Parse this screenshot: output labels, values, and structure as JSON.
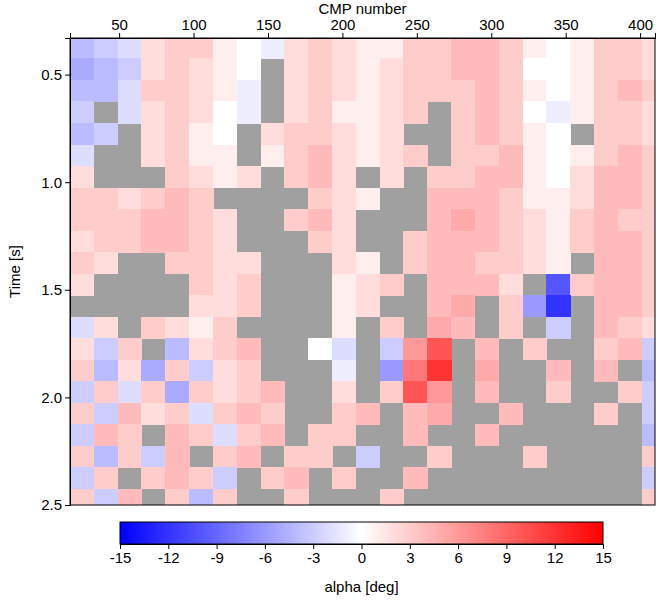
{
  "chart_data": {
    "type": "heatmap",
    "x_label": "CMP number",
    "y_label": "Time [s]",
    "xlim": [
      17,
      410
    ],
    "ylim": [
      0.33,
      2.5
    ],
    "xticks": [
      50,
      100,
      150,
      200,
      250,
      300,
      350,
      400
    ],
    "yticks": [
      0.5,
      {
        "value": 1,
        "label": "1.0"
      },
      1.5,
      {
        "value": 2,
        "label": "2.0"
      },
      2.5
    ],
    "x": [
      25,
      41,
      57,
      73,
      89,
      105,
      121,
      137,
      153,
      169,
      185,
      201,
      217,
      233,
      249,
      265,
      281,
      297,
      313,
      329,
      345,
      361,
      377,
      393,
      409
    ],
    "y": [
      0.375,
      0.475,
      0.575,
      0.675,
      0.775,
      0.875,
      0.975,
      1.075,
      1.175,
      1.275,
      1.375,
      1.475,
      1.575,
      1.675,
      1.775,
      1.875,
      1.975,
      2.075,
      2.175,
      2.275,
      2.375,
      2.475
    ],
    "values": [
      [
        -4,
        -3,
        -2,
        2,
        3,
        3,
        1,
        0,
        -1,
        2,
        3,
        2,
        1,
        1,
        3,
        3,
        4,
        4,
        3,
        1,
        0,
        1,
        3,
        3,
        2
      ],
      [
        -5,
        -4,
        -3,
        2,
        3,
        2,
        1,
        0,
        null,
        2,
        3,
        2,
        1,
        2,
        3,
        3,
        4,
        4,
        3,
        0,
        0,
        1,
        3,
        3,
        2
      ],
      [
        -4,
        -4,
        -2,
        3,
        3,
        2,
        1,
        -1,
        null,
        2,
        3,
        2,
        1,
        2,
        3,
        3,
        3,
        4,
        3,
        1,
        0,
        1,
        3,
        4,
        3
      ],
      [
        -3,
        null,
        -2,
        2,
        3,
        2,
        0,
        -1,
        null,
        2,
        3,
        1,
        1,
        2,
        3,
        null,
        3,
        4,
        3,
        0,
        -1,
        1,
        3,
        3,
        2
      ],
      [
        -4,
        -3,
        null,
        2,
        3,
        1,
        0,
        null,
        2,
        3,
        3,
        2,
        1,
        2,
        null,
        null,
        3,
        4,
        3,
        1,
        0,
        null,
        3,
        3,
        2
      ],
      [
        -2,
        null,
        null,
        2,
        3,
        1,
        1,
        null,
        1,
        3,
        4,
        2,
        1,
        2,
        3,
        null,
        3,
        3,
        4,
        1,
        0,
        1,
        3,
        4,
        3
      ],
      [
        2,
        null,
        null,
        null,
        3,
        2,
        1,
        2,
        null,
        3,
        4,
        2,
        null,
        2,
        null,
        3,
        3,
        4,
        4,
        1,
        0,
        2,
        4,
        4,
        3
      ],
      [
        3,
        3,
        2,
        3,
        4,
        3,
        null,
        null,
        null,
        null,
        3,
        2,
        1,
        null,
        null,
        4,
        4,
        4,
        3,
        1,
        1,
        2,
        4,
        4,
        3
      ],
      [
        3,
        3,
        3,
        4,
        4,
        3,
        2,
        null,
        null,
        3,
        4,
        2,
        null,
        null,
        null,
        4,
        5,
        4,
        3,
        2,
        1,
        3,
        4,
        3,
        3
      ],
      [
        2,
        3,
        3,
        4,
        4,
        3,
        2,
        null,
        null,
        null,
        3,
        2,
        null,
        null,
        3,
        4,
        4,
        4,
        3,
        2,
        1,
        3,
        4,
        4,
        3
      ],
      [
        3,
        2,
        null,
        null,
        3,
        3,
        2,
        2,
        null,
        null,
        null,
        2,
        1,
        null,
        3,
        4,
        4,
        3,
        3,
        2,
        1,
        null,
        4,
        4,
        3
      ],
      [
        2,
        null,
        null,
        null,
        null,
        3,
        2,
        3,
        null,
        null,
        null,
        1,
        2,
        3,
        null,
        4,
        4,
        4,
        2,
        null,
        -10,
        3,
        4,
        4,
        3
      ],
      [
        null,
        null,
        null,
        null,
        null,
        2,
        2,
        3,
        null,
        null,
        null,
        1,
        2,
        null,
        null,
        4,
        5,
        null,
        3,
        -6,
        -12,
        null,
        4,
        4,
        3
      ],
      [
        -2,
        2,
        null,
        3,
        2,
        1,
        3,
        null,
        null,
        null,
        null,
        1,
        null,
        3,
        null,
        5,
        4,
        null,
        3,
        null,
        -3,
        null,
        4,
        3,
        2
      ],
      [
        2,
        -3,
        3,
        null,
        -4,
        2,
        3,
        4,
        null,
        null,
        0,
        -2,
        null,
        -3,
        6,
        10,
        null,
        4,
        null,
        3,
        null,
        null,
        3,
        4,
        -3
      ],
      [
        3,
        -4,
        2,
        -5,
        3,
        -3,
        2,
        3,
        null,
        null,
        null,
        -1,
        null,
        -6,
        8,
        12,
        null,
        5,
        null,
        null,
        4,
        null,
        4,
        null,
        -4
      ],
      [
        -3,
        3,
        -2,
        3,
        -5,
        3,
        2,
        3,
        4,
        null,
        null,
        2,
        null,
        3,
        10,
        6,
        null,
        4,
        null,
        null,
        3,
        null,
        null,
        3,
        -3
      ],
      [
        3,
        -3,
        4,
        2,
        3,
        -2,
        3,
        4,
        3,
        null,
        null,
        3,
        4,
        null,
        4,
        5,
        null,
        null,
        4,
        null,
        null,
        null,
        3,
        null,
        -3
      ],
      [
        -3,
        4,
        3,
        null,
        4,
        3,
        -2,
        3,
        4,
        null,
        3,
        3,
        null,
        null,
        4,
        null,
        null,
        4,
        null,
        null,
        null,
        null,
        null,
        null,
        -4
      ],
      [
        3,
        -4,
        3,
        -3,
        4,
        null,
        3,
        4,
        null,
        3,
        3,
        null,
        -3,
        null,
        null,
        3,
        null,
        null,
        null,
        3,
        null,
        null,
        null,
        null,
        3
      ],
      [
        -3,
        3,
        null,
        3,
        4,
        3,
        -3,
        null,
        3,
        4,
        null,
        3,
        null,
        null,
        4,
        null,
        null,
        null,
        null,
        null,
        null,
        null,
        null,
        null,
        -3
      ],
      [
        3,
        -3,
        4,
        null,
        3,
        -4,
        3,
        null,
        null,
        3,
        null,
        null,
        null,
        3,
        null,
        null,
        null,
        null,
        null,
        null,
        null,
        null,
        null,
        null,
        3
      ]
    ],
    "colorbar": {
      "label": "alpha [deg]",
      "range": [
        -15,
        15
      ],
      "ticks": [
        -15,
        -12,
        -9,
        -6,
        -3,
        0,
        3,
        6,
        9,
        12,
        15
      ],
      "colors": [
        "#0000ff",
        "#ffffff",
        "#ff0000"
      ]
    }
  }
}
